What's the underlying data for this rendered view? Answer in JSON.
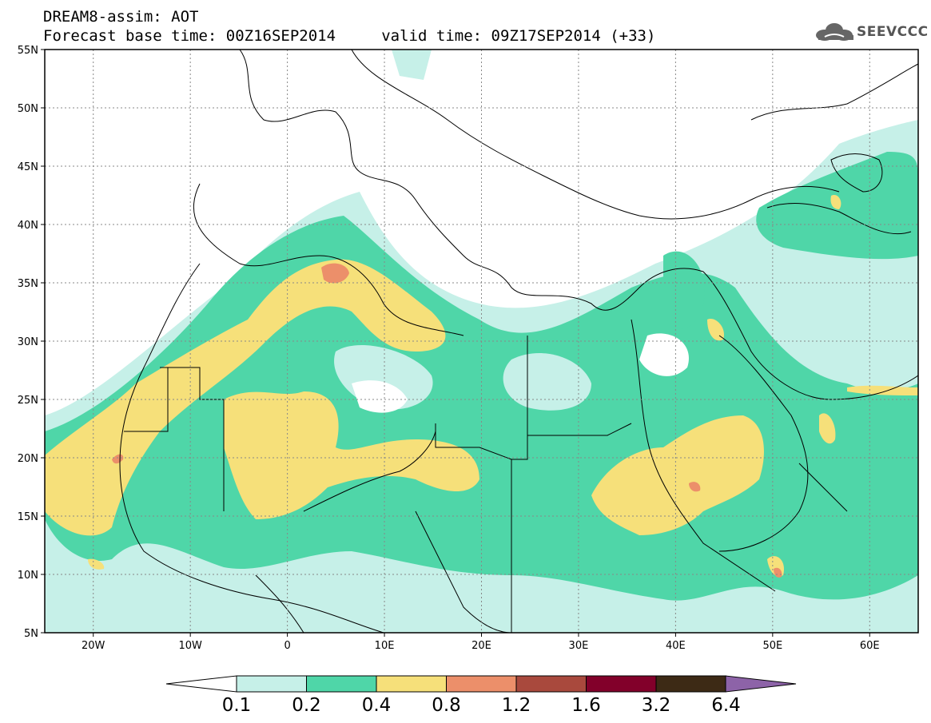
{
  "title_line1": "DREAM8-assim: AOT",
  "title_line2": "Forecast base time: 00Z16SEP2014     valid time: 09Z17SEP2014 (+33)",
  "logo_text": "SEEVCCC",
  "logo_icon": "cloud-icon",
  "map": {
    "lon_range": [
      -25,
      65
    ],
    "lat_range": [
      5,
      55
    ],
    "grid": true,
    "lat_ticks": [
      "55N",
      "50N",
      "45N",
      "40N",
      "35N",
      "30N",
      "25N",
      "20N",
      "15N",
      "10N",
      "5N"
    ],
    "lon_ticks": [
      "20W",
      "10W",
      "0",
      "10E",
      "20E",
      "30E",
      "40E",
      "50E",
      "60E"
    ]
  },
  "colorbar": {
    "labels": [
      "0.1",
      "0.2",
      "0.4",
      "0.8",
      "1.2",
      "1.6",
      "3.2",
      "6.4"
    ],
    "colors": [
      "#ffffff",
      "#c6f0e8",
      "#4fd6a8",
      "#f6e07a",
      "#ec8f6a",
      "#a9493d",
      "#82002a",
      "#3d2a15",
      "#8d63a8"
    ]
  }
}
